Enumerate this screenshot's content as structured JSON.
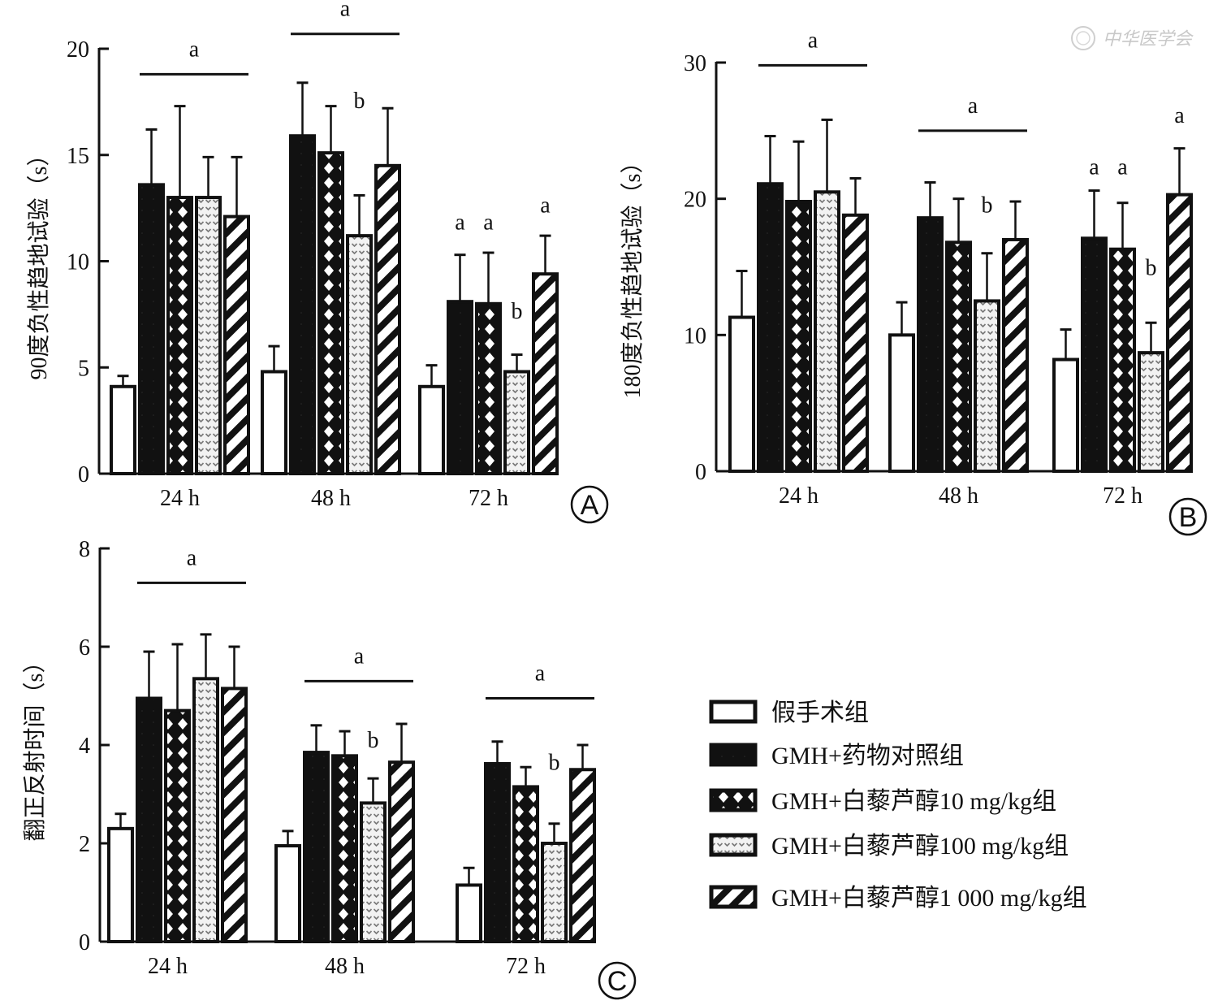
{
  "watermark": {
    "text": "中华医学会",
    "icon": "society-seal-icon"
  },
  "legend": {
    "items": [
      {
        "label": "假手术组",
        "pattern": "white"
      },
      {
        "label": "GMH+药物对照组",
        "pattern": "black"
      },
      {
        "label": "GMH+白藜芦醇10 mg/kg组",
        "pattern": "crosshatch"
      },
      {
        "label": "GMH+白藜芦醇100 mg/kg组",
        "pattern": "dotted"
      },
      {
        "label": "GMH+白藜芦醇1 000 mg/kg组",
        "pattern": "diagonal"
      }
    ]
  },
  "colors": {
    "ink": "#111111",
    "paper": "#ffffff",
    "dot": "#777777"
  },
  "chart_data": [
    {
      "type": "bar",
      "panel": "A",
      "title": "",
      "xlabel": "",
      "ylabel": "90度负性趋地试验（s）",
      "ylim": [
        0,
        20
      ],
      "yticks": [
        0,
        5,
        10,
        15,
        20
      ],
      "categories": [
        "24 h",
        "48 h",
        "72 h"
      ],
      "series": [
        {
          "name": "假手术组",
          "values": [
            4.1,
            4.8,
            4.1
          ],
          "errors": [
            0.5,
            1.2,
            1.0
          ]
        },
        {
          "name": "GMH+药物对照组",
          "values": [
            13.6,
            15.9,
            8.1
          ],
          "errors": [
            2.6,
            2.5,
            2.2
          ]
        },
        {
          "name": "GMH+白藜芦醇10 mg/kg组",
          "values": [
            13.0,
            15.1,
            8.0
          ],
          "errors": [
            4.3,
            2.2,
            2.4
          ]
        },
        {
          "name": "GMH+白藜芦醇100 mg/kg组",
          "values": [
            13.0,
            11.2,
            4.8
          ],
          "errors": [
            1.9,
            1.9,
            0.8
          ]
        },
        {
          "name": "GMH+白藜芦醇1 000 mg/kg组",
          "values": [
            12.1,
            14.5,
            9.4
          ],
          "errors": [
            2.8,
            2.7,
            1.8
          ]
        }
      ],
      "annotations": [
        {
          "text": "a",
          "type": "bracket",
          "category": 0,
          "from_series": 1,
          "to_series": 4,
          "level": 18.8
        },
        {
          "text": "a",
          "type": "bracket",
          "category": 1,
          "from_series": 1,
          "to_series": 4,
          "level": 20.7
        },
        {
          "text": "b",
          "type": "label",
          "category": 1,
          "series": 3,
          "level": 17.2
        },
        {
          "text": "a",
          "type": "label",
          "category": 2,
          "series": 1,
          "level": 11.5
        },
        {
          "text": "a",
          "type": "label",
          "category": 2,
          "series": 2,
          "level": 11.5
        },
        {
          "text": "b",
          "type": "label",
          "category": 2,
          "series": 3,
          "level": 7.3
        },
        {
          "text": "a",
          "type": "label",
          "category": 2,
          "series": 4,
          "level": 12.3
        }
      ],
      "grid": false,
      "legend": "shared-bottom-right"
    },
    {
      "type": "bar",
      "panel": "B",
      "title": "",
      "xlabel": "",
      "ylabel": "180度负性趋地试验（s）",
      "ylim": [
        0,
        30
      ],
      "yticks": [
        0,
        10,
        20,
        30
      ],
      "categories": [
        "24 h",
        "48 h",
        "72 h"
      ],
      "series": [
        {
          "name": "假手术组",
          "values": [
            11.3,
            10.0,
            8.2
          ],
          "errors": [
            3.4,
            2.4,
            2.2
          ]
        },
        {
          "name": "GMH+药物对照组",
          "values": [
            21.1,
            18.6,
            17.1
          ],
          "errors": [
            3.5,
            2.6,
            3.5
          ]
        },
        {
          "name": "GMH+白藜芦醇10 mg/kg组",
          "values": [
            19.8,
            16.8,
            16.3
          ],
          "errors": [
            4.4,
            3.2,
            3.4
          ]
        },
        {
          "name": "GMH+白藜芦醇100 mg/kg组",
          "values": [
            20.5,
            12.5,
            8.7
          ],
          "errors": [
            5.3,
            3.5,
            2.2
          ]
        },
        {
          "name": "GMH+白藜芦醇1 000 mg/kg组",
          "values": [
            18.8,
            17.0,
            20.3
          ],
          "errors": [
            2.7,
            2.8,
            3.4
          ]
        }
      ],
      "annotations": [
        {
          "text": "a",
          "type": "bracket",
          "category": 0,
          "from_series": 1,
          "to_series": 4,
          "level": 29.8
        },
        {
          "text": "a",
          "type": "bracket",
          "category": 1,
          "from_series": 1,
          "to_series": 4,
          "level": 25.0
        },
        {
          "text": "b",
          "type": "label",
          "category": 1,
          "series": 3,
          "level": 19.0
        },
        {
          "text": "a",
          "type": "label",
          "category": 2,
          "series": 1,
          "level": 21.8
        },
        {
          "text": "a",
          "type": "label",
          "category": 2,
          "series": 2,
          "level": 21.8
        },
        {
          "text": "b",
          "type": "label",
          "category": 2,
          "series": 3,
          "level": 14.4
        },
        {
          "text": "a",
          "type": "label",
          "category": 2,
          "series": 4,
          "level": 25.6
        }
      ],
      "grid": false,
      "legend": "shared-bottom-right"
    },
    {
      "type": "bar",
      "panel": "C",
      "title": "",
      "xlabel": "",
      "ylabel": "翻正反射时间（s）",
      "ylim": [
        0,
        8
      ],
      "yticks": [
        0,
        2,
        4,
        6,
        8
      ],
      "categories": [
        "24 h",
        "48 h",
        "72 h"
      ],
      "series": [
        {
          "name": "假手术组",
          "values": [
            2.3,
            1.95,
            1.15
          ],
          "errors": [
            0.3,
            0.3,
            0.35
          ]
        },
        {
          "name": "GMH+药物对照组",
          "values": [
            4.95,
            3.85,
            3.62
          ],
          "errors": [
            0.95,
            0.55,
            0.45
          ]
        },
        {
          "name": "GMH+白藜芦醇10 mg/kg组",
          "values": [
            4.7,
            3.78,
            3.15
          ],
          "errors": [
            1.35,
            0.5,
            0.4
          ]
        },
        {
          "name": "GMH+白藜芦醇100 mg/kg组",
          "values": [
            5.35,
            2.82,
            2.0
          ],
          "errors": [
            0.9,
            0.5,
            0.4
          ]
        },
        {
          "name": "GMH+白藜芦醇1 000 mg/kg组",
          "values": [
            5.15,
            3.65,
            3.5
          ],
          "errors": [
            0.85,
            0.78,
            0.5
          ]
        }
      ],
      "annotations": [
        {
          "text": "a",
          "type": "bracket",
          "category": 0,
          "from_series": 1,
          "to_series": 4,
          "level": 7.3
        },
        {
          "text": "a",
          "type": "bracket",
          "category": 1,
          "from_series": 1,
          "to_series": 4,
          "level": 5.3
        },
        {
          "text": "b",
          "type": "label",
          "category": 1,
          "series": 3,
          "level": 3.95
        },
        {
          "text": "a",
          "type": "bracket",
          "category": 2,
          "from_series": 1,
          "to_series": 4,
          "level": 4.95
        },
        {
          "text": "b",
          "type": "label",
          "category": 2,
          "series": 3,
          "level": 3.5
        }
      ],
      "grid": false,
      "legend": "shared-bottom-right"
    }
  ]
}
